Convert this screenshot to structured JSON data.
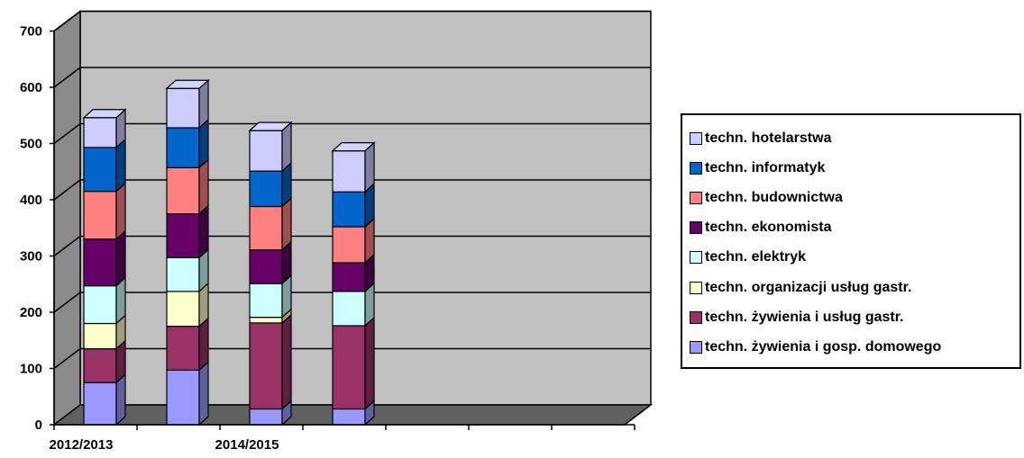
{
  "chart_data": {
    "type": "bar",
    "stacked": true,
    "three_d": true,
    "categories": [
      "2012/2013",
      "",
      "2014/2015",
      ""
    ],
    "x_tick_labels": [
      "2012/2013",
      "2014/2015"
    ],
    "ylim": [
      0,
      700
    ],
    "y_ticks": [
      0,
      100,
      200,
      300,
      400,
      500,
      600,
      700
    ],
    "grid": true,
    "legend_position": "right",
    "series": [
      {
        "name": "techn. żywienia i gosp. domowego",
        "color": "#9999ff",
        "values": [
          75,
          97,
          28,
          28
        ]
      },
      {
        "name": "techn. żywienia i usług gastr.",
        "color": "#993366",
        "values": [
          60,
          78,
          153,
          148
        ]
      },
      {
        "name": "techn. organizacji usług gastr.",
        "color": "#ffffcc",
        "values": [
          45,
          62,
          10,
          0
        ]
      },
      {
        "name": "techn. elektryk",
        "color": "#ccffff",
        "values": [
          67,
          60,
          60,
          61
        ]
      },
      {
        "name": "techn. ekonomista",
        "color": "#660066",
        "values": [
          83,
          78,
          60,
          51
        ]
      },
      {
        "name": "techn. budownictwa",
        "color": "#ff8080",
        "values": [
          85,
          82,
          77,
          64
        ]
      },
      {
        "name": "techn. informatyk",
        "color": "#0066cc",
        "values": [
          78,
          71,
          63,
          62
        ]
      },
      {
        "name": "techn. hotelarstwa",
        "color": "#ccccff",
        "values": [
          53,
          70,
          72,
          73
        ]
      }
    ]
  }
}
